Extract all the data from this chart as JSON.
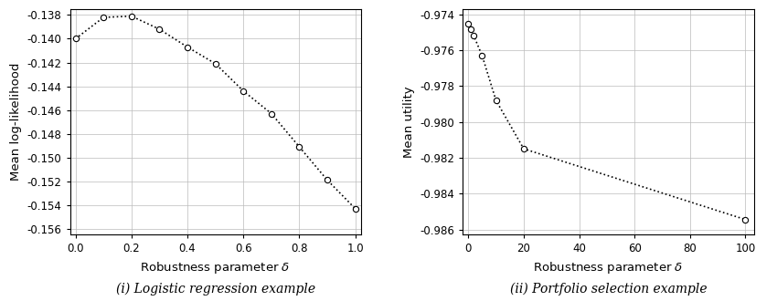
{
  "left": {
    "x": [
      0,
      0.1,
      0.2,
      0.3,
      0.4,
      0.5,
      0.6,
      0.7,
      0.8,
      0.9,
      1.0
    ],
    "y": [
      -0.14,
      -0.1382,
      -0.1381,
      -0.1392,
      -0.1407,
      -0.1421,
      -0.1444,
      -0.1463,
      -0.1491,
      -0.1519,
      -0.1543
    ],
    "xlabel": "Robustness parameter $\\delta$",
    "ylabel": "Mean log-likelihood",
    "xlim": [
      -0.02,
      1.02
    ],
    "ylim": [
      -0.1565,
      -0.1375
    ],
    "yticks": [
      -0.138,
      -0.14,
      -0.142,
      -0.144,
      -0.146,
      -0.148,
      -0.15,
      -0.152,
      -0.154,
      -0.156
    ],
    "xticks": [
      0,
      0.2,
      0.4,
      0.6,
      0.8,
      1.0
    ],
    "caption": "(i) Logistic regression example"
  },
  "right": {
    "x": [
      0,
      1,
      2,
      5,
      10,
      20,
      100
    ],
    "y": [
      -0.9745,
      -0.9748,
      -0.9752,
      -0.9763,
      -0.9788,
      -0.9815,
      -0.98545
    ],
    "xlabel": "Robustness parameter $\\delta$",
    "ylabel": "Mean utility",
    "xlim": [
      -2,
      103
    ],
    "ylim": [
      -0.9863,
      -0.9737
    ],
    "yticks": [
      -0.974,
      -0.976,
      -0.978,
      -0.98,
      -0.982,
      -0.984,
      -0.986
    ],
    "xticks": [
      0,
      20,
      40,
      60,
      80,
      100
    ],
    "caption": "(ii) Portfolio selection example"
  },
  "line_color": "#000000",
  "marker": "o",
  "markersize": 4.5,
  "linestyle": "dotted",
  "linewidth": 1.2,
  "background_color": "#ffffff",
  "grid_color": "#bbbbbb",
  "caption_fontsize": 10,
  "label_fontsize": 9.5,
  "tick_fontsize": 8.5
}
